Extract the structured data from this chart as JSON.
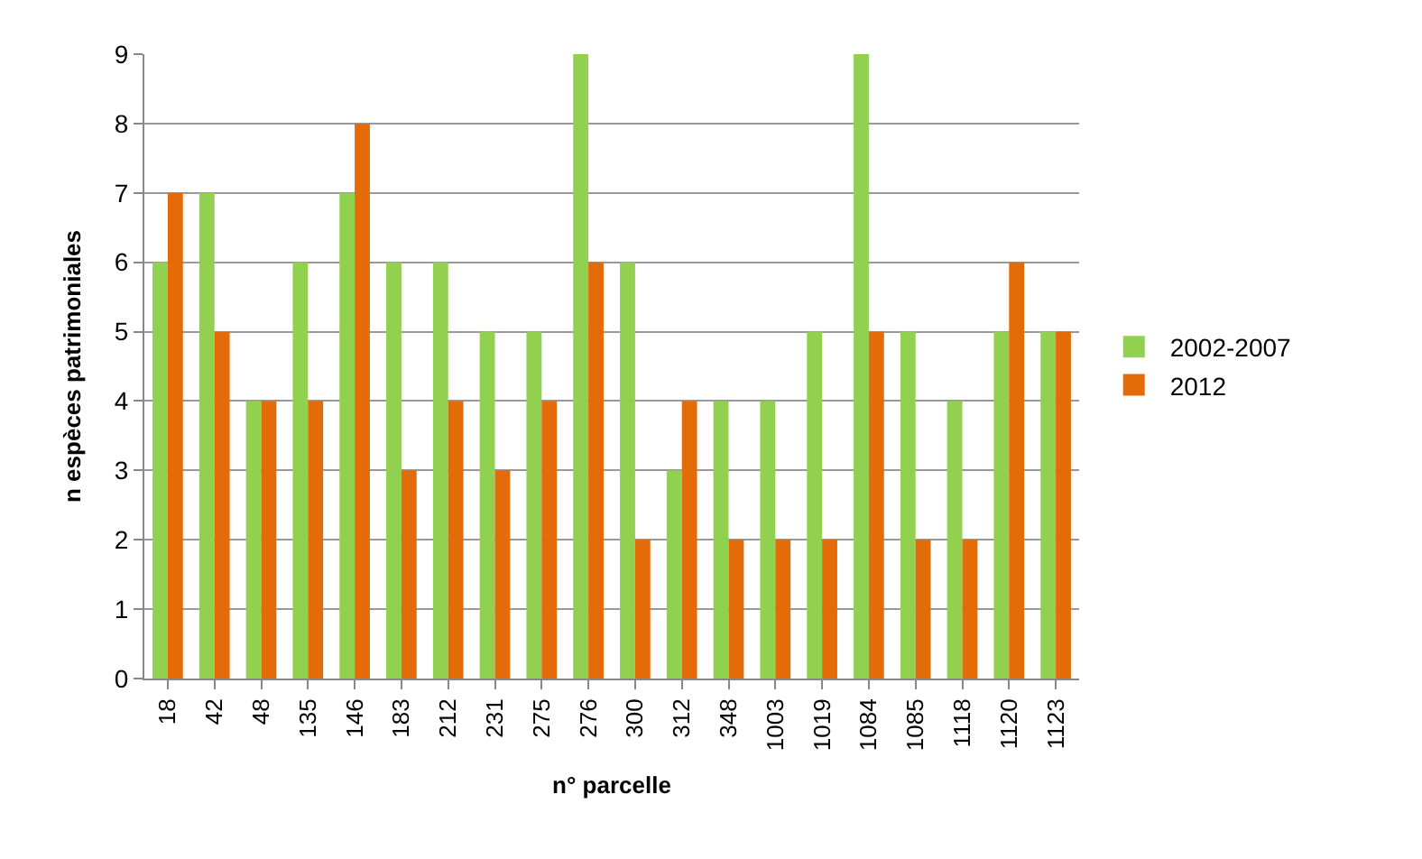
{
  "chart_data": {
    "type": "bar",
    "xlabel": "n° parcelle",
    "ylabel": "n espèces patrimoniales",
    "categories": [
      "18",
      "42",
      "48",
      "135",
      "146",
      "183",
      "212",
      "231",
      "275",
      "276",
      "300",
      "312",
      "348",
      "1003",
      "1019",
      "1084",
      "1085",
      "1118",
      "1120",
      "1123"
    ],
    "series": [
      {
        "name": "2002-2007",
        "color": "#92d050",
        "values": [
          6,
          7,
          4,
          6,
          7,
          6,
          6,
          5,
          5,
          9,
          6,
          3,
          4,
          4,
          5,
          9,
          5,
          4,
          5,
          5
        ]
      },
      {
        "name": "2012",
        "color": "#e36c09",
        "values": [
          7,
          5,
          4,
          4,
          8,
          3,
          4,
          3,
          4,
          6,
          2,
          4,
          2,
          2,
          2,
          5,
          2,
          2,
          6,
          5
        ]
      }
    ],
    "ylim": [
      0,
      9
    ],
    "yticks": [
      0,
      1,
      2,
      3,
      4,
      5,
      6,
      7,
      8,
      9
    ],
    "grid": "y",
    "legend": "right"
  }
}
